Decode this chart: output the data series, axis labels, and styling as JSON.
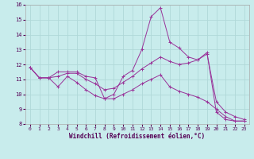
{
  "xlabel": "Windchill (Refroidissement éolien,°C)",
  "bg_color": "#c8ecec",
  "line_color": "#993399",
  "grid_color": "#b0d8d8",
  "xlim": [
    -0.5,
    23.5
  ],
  "ylim": [
    8,
    16
  ],
  "yticks": [
    8,
    9,
    10,
    11,
    12,
    13,
    14,
    15,
    16
  ],
  "xticks": [
    0,
    1,
    2,
    3,
    4,
    5,
    6,
    7,
    8,
    9,
    10,
    11,
    12,
    13,
    14,
    15,
    16,
    17,
    18,
    19,
    20,
    21,
    22,
    23
  ],
  "line1_x": [
    0,
    1,
    2,
    3,
    4,
    5,
    6,
    7,
    8,
    9,
    10,
    11,
    12,
    13,
    14,
    15,
    16,
    17,
    18,
    19,
    20,
    21,
    22,
    23
  ],
  "line1_y": [
    11.8,
    11.1,
    11.1,
    11.5,
    11.5,
    11.5,
    11.2,
    11.1,
    9.7,
    10.0,
    11.2,
    11.6,
    13.0,
    15.2,
    15.8,
    13.5,
    13.1,
    12.5,
    12.3,
    12.8,
    8.8,
    8.3,
    8.2,
    8.2
  ],
  "line2_x": [
    0,
    1,
    2,
    3,
    4,
    5,
    6,
    7,
    8,
    9,
    10,
    11,
    12,
    13,
    14,
    15,
    16,
    17,
    18,
    19,
    20,
    21,
    22,
    23
  ],
  "line2_y": [
    11.8,
    11.1,
    11.1,
    11.2,
    11.4,
    11.4,
    11.0,
    10.7,
    10.3,
    10.4,
    10.8,
    11.2,
    11.7,
    12.1,
    12.5,
    12.2,
    12.0,
    12.1,
    12.3,
    12.7,
    9.5,
    8.8,
    8.5,
    8.3
  ],
  "line3_x": [
    0,
    1,
    2,
    3,
    4,
    5,
    6,
    7,
    8,
    9,
    10,
    11,
    12,
    13,
    14,
    15,
    16,
    17,
    18,
    19,
    20,
    21,
    22,
    23
  ],
  "line3_y": [
    11.8,
    11.1,
    11.1,
    10.5,
    11.2,
    10.8,
    10.3,
    9.9,
    9.7,
    9.7,
    10.0,
    10.3,
    10.7,
    11.0,
    11.3,
    10.5,
    10.2,
    10.0,
    9.8,
    9.5,
    9.0,
    8.5,
    8.2,
    8.2
  ]
}
